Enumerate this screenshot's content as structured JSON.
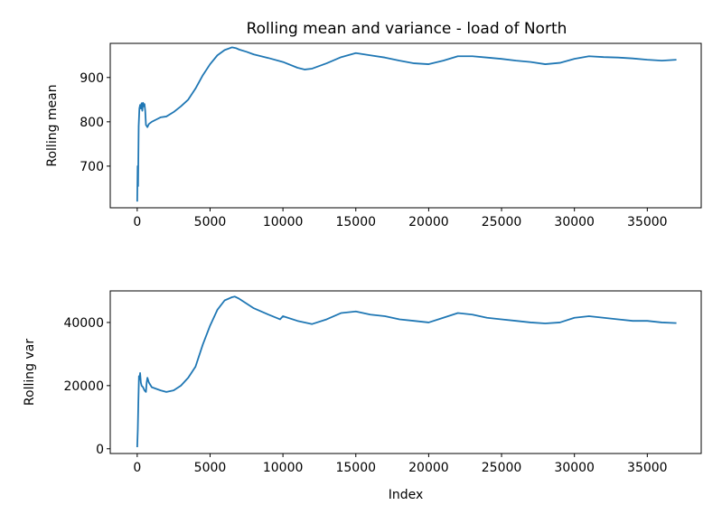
{
  "colors": {
    "line": "#1f77b4",
    "axes": "#000000",
    "background": "#ffffff"
  },
  "chart_data": [
    {
      "type": "line",
      "title": "Rolling mean and variance - load of North",
      "xlabel": "",
      "ylabel": "Rolling mean",
      "xlim": [
        -1850,
        38700
      ],
      "ylim": [
        606,
        977
      ],
      "xticks": [
        0,
        5000,
        10000,
        15000,
        20000,
        25000,
        30000,
        35000
      ],
      "xtick_labels": [
        "0",
        "5000",
        "10000",
        "15000",
        "20000",
        "25000",
        "30000",
        "35000"
      ],
      "yticks": [
        700,
        800,
        900
      ],
      "ytick_labels": [
        "700",
        "800",
        "900"
      ],
      "grid": false,
      "series": [
        {
          "x": [
            0,
            30,
            60,
            100,
            150,
            200,
            250,
            300,
            350,
            400,
            450,
            500,
            550,
            600,
            700,
            800,
            1000,
            1300,
            1600,
            2000,
            2500,
            3000,
            3500,
            4000,
            4500,
            5000,
            5500,
            6000,
            6500,
            6800,
            7000,
            7500,
            8000,
            9000,
            10000,
            11000,
            11500,
            12000,
            13000,
            14000,
            15000,
            16000,
            17000,
            18000,
            19000,
            20000,
            21000,
            22000,
            23000,
            24000,
            25000,
            26000,
            27000,
            28000,
            29000,
            30000,
            31000,
            32000,
            33000,
            34000,
            35000,
            36000,
            37000
          ],
          "values": [
            620,
            700,
            655,
            790,
            830,
            838,
            830,
            842,
            825,
            843,
            835,
            840,
            825,
            793,
            788,
            795,
            800,
            805,
            810,
            812,
            822,
            835,
            850,
            875,
            905,
            930,
            950,
            962,
            968,
            966,
            963,
            958,
            952,
            944,
            935,
            922,
            918,
            920,
            932,
            946,
            955,
            950,
            945,
            938,
            932,
            930,
            938,
            948,
            948,
            945,
            942,
            938,
            935,
            930,
            933,
            942,
            948,
            946,
            945,
            943,
            940,
            938,
            940
          ]
        }
      ]
    },
    {
      "type": "line",
      "title": "",
      "xlabel": "Index",
      "ylabel": "Rolling var",
      "xlim": [
        -1850,
        38700
      ],
      "ylim": [
        -1500,
        50000
      ],
      "xticks": [
        0,
        5000,
        10000,
        15000,
        20000,
        25000,
        30000,
        35000
      ],
      "xtick_labels": [
        "0",
        "5000",
        "10000",
        "15000",
        "20000",
        "25000",
        "30000",
        "35000"
      ],
      "yticks": [
        0,
        20000,
        40000
      ],
      "ytick_labels": [
        "0",
        "20000",
        "40000"
      ],
      "grid": false,
      "series": [
        {
          "x": [
            0,
            40,
            80,
            120,
            160,
            200,
            250,
            300,
            400,
            500,
            600,
            650,
            700,
            800,
            1000,
            1300,
            1600,
            2000,
            2500,
            3000,
            3500,
            4000,
            4500,
            5000,
            5500,
            6000,
            6500,
            6700,
            7000,
            7500,
            8000,
            9000,
            9800,
            10000,
            11000,
            12000,
            13000,
            14000,
            15000,
            16000,
            17000,
            18000,
            19000,
            20000,
            21000,
            22000,
            23000,
            24000,
            25000,
            26000,
            27000,
            28000,
            29000,
            30000,
            31000,
            32000,
            33000,
            34000,
            35000,
            36000,
            37000
          ],
          "values": [
            500,
            6000,
            15000,
            23000,
            22000,
            24000,
            21000,
            20000,
            19500,
            18500,
            18000,
            21000,
            22500,
            21000,
            19500,
            19000,
            18500,
            18000,
            18500,
            20000,
            22500,
            26000,
            33000,
            39000,
            44000,
            47000,
            48000,
            48200,
            47500,
            46000,
            44500,
            42500,
            41000,
            42000,
            40500,
            39500,
            41000,
            43000,
            43500,
            42500,
            42000,
            41000,
            40500,
            40000,
            41500,
            43000,
            42500,
            41500,
            41000,
            40500,
            40000,
            39700,
            40000,
            41500,
            42000,
            41500,
            41000,
            40500,
            40500,
            40000,
            39800
          ]
        }
      ]
    }
  ]
}
